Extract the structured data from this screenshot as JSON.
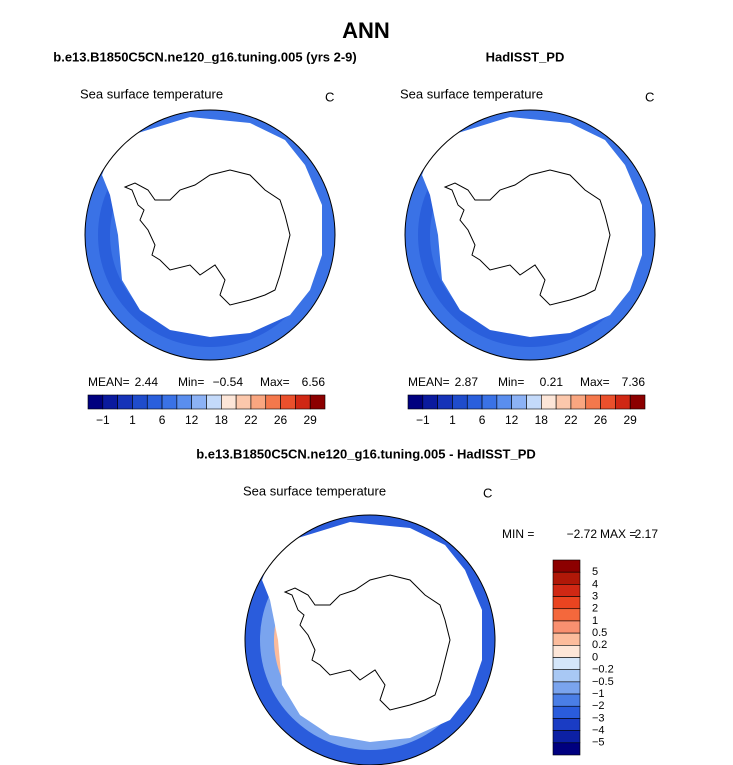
{
  "title": "ANN",
  "panels": [
    {
      "subtitle": "b.e13.B1850C5CN.ne120_g16.tuning.005 (yrs 2-9)",
      "field": "Sea surface temperature",
      "units": "C",
      "stats": {
        "mean_label": "MEAN=",
        "mean": "2.44",
        "min_label": "Min=",
        "min": "−0.54",
        "max_label": "Max=",
        "max": "6.56"
      }
    },
    {
      "subtitle": "HadISST_PD",
      "field": "Sea surface temperature",
      "units": "C",
      "stats": {
        "mean_label": "MEAN=",
        "mean": "2.87",
        "min_label": "Min=",
        "min": "0.21",
        "max_label": "Max=",
        "max": "7.36"
      }
    }
  ],
  "colorbar": {
    "labels": [
      "−1",
      "1",
      "6",
      "12",
      "18",
      "22",
      "26",
      "29"
    ],
    "colors": [
      "#00007f",
      "#0a1a9e",
      "#1633b8",
      "#1f4ccc",
      "#2a5fdc",
      "#3a72e6",
      "#5a8eee",
      "#8cb2f5",
      "#c4dafa",
      "#fde6d8",
      "#fcc8ac",
      "#f9a680",
      "#f4784c",
      "#ea502c",
      "#d02814",
      "#8c0000"
    ]
  },
  "difference": {
    "subtitle": "b.e13.B1850C5CN.ne120_g16.tuning.005 - HadISST_PD",
    "field": "Sea surface temperature",
    "units": "C",
    "min_label": "MIN =",
    "min": "−2.72",
    "max_label": "MAX =",
    "max": "2.17",
    "colorbar": {
      "labels": [
        "5",
        "4",
        "3",
        "2",
        "1",
        "0.5",
        "0.2",
        "0",
        "−0.2",
        "−0.5",
        "−1",
        "−2",
        "−3",
        "−4",
        "−5"
      ],
      "colors": [
        "#8c0000",
        "#b01808",
        "#d02814",
        "#ea4420",
        "#f4683c",
        "#f99070",
        "#fcbc9c",
        "#fde6d8",
        "#d4e6fa",
        "#a8c8f4",
        "#7aa4ee",
        "#4a7ee6",
        "#2a5cdc",
        "#1a3cc4",
        "#0c20a4",
        "#00007f"
      ]
    }
  }
}
